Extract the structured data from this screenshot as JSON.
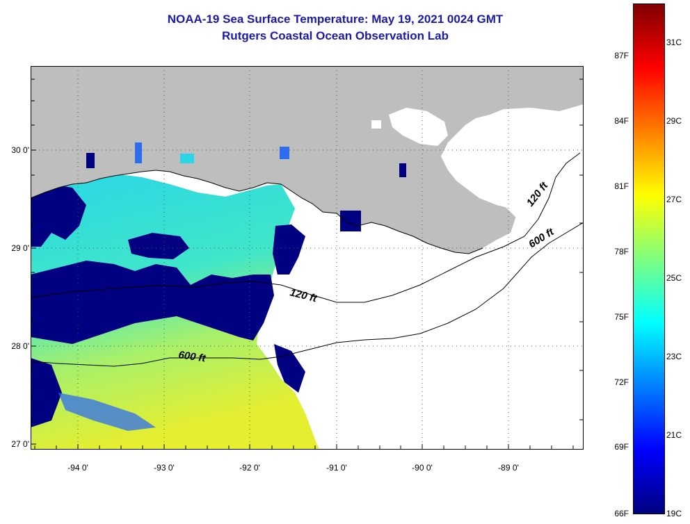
{
  "title": "NOAA-19 Sea Surface Temperature:  May 19, 2021 0024 GMT",
  "subtitle": "Rutgers Coastal Ocean Observation Lab",
  "lat_labels": [
    "30 0'",
    "29 0'",
    "28 0'",
    "27 0'"
  ],
  "lon_labels": [
    "-94 0'",
    "-93 0'",
    "-92 0'",
    "-91 0'",
    "-90 0'",
    "-89 0'"
  ],
  "contours": {
    "shallow_label": "120 ft",
    "deep_label": "600 ft"
  },
  "colorbar": {
    "fahrenheit_labels": [
      "87F",
      "84F",
      "81F",
      "78F",
      "75F",
      "72F",
      "69F",
      "66F"
    ],
    "celsius_labels": [
      "31C",
      "29C",
      "27C",
      "25C",
      "23C",
      "21C",
      "19C"
    ],
    "colors": [
      "#00007f",
      "#0000ff",
      "#007fff",
      "#00ffff",
      "#7fff7f",
      "#ffff00",
      "#ff7f00",
      "#ff0000",
      "#7f0000"
    ]
  },
  "colors": {
    "land": "#bebebe",
    "no_data": "#ffffff",
    "cold_water": "#000080",
    "warm_water": "#e8ee30",
    "title": "#1a1aa6"
  }
}
